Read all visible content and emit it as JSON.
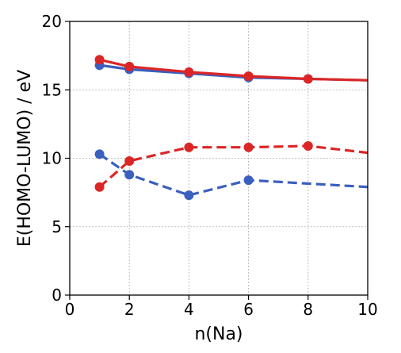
{
  "chart_data": {
    "type": "line",
    "title": "",
    "xlabel": "n(Na)",
    "ylabel": "E(HOMO-LUMO) / eV",
    "xlim": [
      0,
      10
    ],
    "ylim": [
      0,
      20
    ],
    "xticks": [
      0,
      2,
      4,
      6,
      8,
      10
    ],
    "yticks": [
      0,
      5,
      10,
      15,
      20
    ],
    "grid": true,
    "legend": "none",
    "series": [
      {
        "color": "#3a5fbf",
        "style": "solid",
        "x": [
          1,
          2,
          4,
          6,
          8,
          10
        ],
        "y": [
          16.8,
          16.5,
          16.2,
          15.9,
          15.8,
          15.7
        ],
        "markers": [
          true,
          true,
          true,
          true,
          true,
          false
        ]
      },
      {
        "color": "#dc2626",
        "style": "solid",
        "x": [
          1,
          2,
          4,
          6,
          8,
          10
        ],
        "y": [
          17.2,
          16.7,
          16.3,
          16.0,
          15.8,
          15.7
        ],
        "markers": [
          true,
          true,
          true,
          true,
          true,
          false
        ]
      },
      {
        "color": "#3a5fbf",
        "style": "dashed",
        "x": [
          1,
          2,
          4,
          6,
          10
        ],
        "y": [
          10.3,
          8.8,
          7.3,
          8.4,
          7.9
        ],
        "markers": [
          true,
          true,
          true,
          true,
          false
        ]
      },
      {
        "color": "#dc2626",
        "style": "dashed",
        "x": [
          1,
          2,
          4,
          6,
          8,
          10
        ],
        "y": [
          7.9,
          9.8,
          10.8,
          10.8,
          10.9,
          10.4
        ],
        "markers": [
          true,
          true,
          true,
          true,
          true,
          false
        ]
      }
    ]
  }
}
